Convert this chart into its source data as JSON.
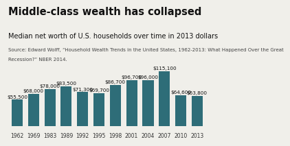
{
  "title": "Middle-class wealth has collapsed",
  "subtitle": "Median net worth of U.S. households over time in 2013 dollars",
  "source_line1": "Source: Edward Wolff, “Household Wealth Trends in the United States, 1962-2013: What Happened Over the Great",
  "source_line2": "Recession?” NBER 2014.",
  "years": [
    "1962",
    "1969",
    "1983",
    "1989",
    "1992",
    "1995",
    "1998",
    "2001",
    "2004",
    "2007",
    "2010",
    "2013"
  ],
  "values": [
    55500,
    68000,
    78000,
    83500,
    71300,
    69700,
    86700,
    96700,
    96000,
    115100,
    64600,
    63800
  ],
  "labels": [
    "$55,500",
    "$68,000",
    "$78,000",
    "$83,500",
    "$71,300",
    "$69,700",
    "$86,700",
    "$96,700",
    "$96,000",
    "$115,100",
    "$64,600",
    "$63,800"
  ],
  "bar_color": "#2e6d78",
  "background_color": "#f0efea",
  "title_fontsize": 10.5,
  "subtitle_fontsize": 7.0,
  "source_fontsize": 5.0,
  "label_fontsize": 5.2,
  "tick_fontsize": 5.5,
  "ylim": [
    0,
    138000
  ]
}
